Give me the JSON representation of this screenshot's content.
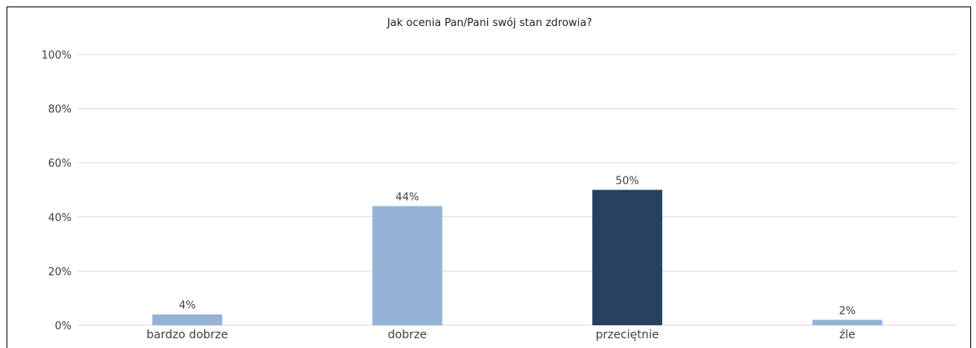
{
  "chart_data": {
    "type": "bar",
    "title": "Jak ocenia Pan/Pani swój stan zdrowia?",
    "categories": [
      "bardzo dobrze",
      "dobrze",
      "przeciętnie",
      "źle"
    ],
    "values": [
      4,
      44,
      50,
      2
    ],
    "data_labels": [
      "4%",
      "44%",
      "50%",
      "2%"
    ],
    "ylim": [
      0,
      100
    ],
    "yticks": [
      0,
      20,
      40,
      60,
      80,
      100
    ],
    "ytick_labels": [
      "0%",
      "20%",
      "40%",
      "60%",
      "80%",
      "100%"
    ],
    "grid": true,
    "legend": "none",
    "bar_colors": [
      "#95b3d7",
      "#95b3d7",
      "#254061",
      "#95b3d7"
    ],
    "gridline_color": "#d9d9d9"
  }
}
